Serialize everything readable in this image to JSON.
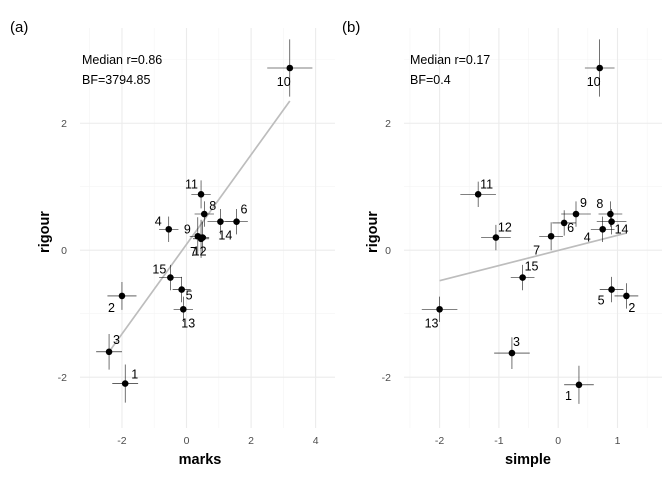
{
  "chart_data": [
    {
      "type": "scatter",
      "panel_tag": "(a)",
      "xlabel": "marks",
      "ylabel": "rigour",
      "xlim": [
        -3.3,
        4.6
      ],
      "ylim": [
        -2.8,
        3.5
      ],
      "x_ticks": [
        -2,
        0,
        2,
        4
      ],
      "y_ticks": [
        -2,
        0,
        2
      ],
      "grid": true,
      "annotations": [
        "Median r=0.86",
        "BF=3794.85"
      ],
      "fit_line": {
        "x": [
          -2.4,
          3.2
        ],
        "y": [
          -1.6,
          2.35
        ]
      },
      "points": [
        {
          "label": "1",
          "x": -1.9,
          "y": -2.1,
          "xerr": 0.4,
          "yerr": 0.3
        },
        {
          "label": "2",
          "x": -2.0,
          "y": -0.72,
          "xerr": 0.45,
          "yerr": 0.22
        },
        {
          "label": "3",
          "x": -2.4,
          "y": -1.6,
          "xerr": 0.4,
          "yerr": 0.28
        },
        {
          "label": "4",
          "x": -0.55,
          "y": 0.33,
          "xerr": 0.3,
          "yerr": 0.2
        },
        {
          "label": "5",
          "x": -0.15,
          "y": -0.62,
          "xerr": 0.28,
          "yerr": 0.2
        },
        {
          "label": "6",
          "x": 1.55,
          "y": 0.45,
          "xerr": 0.35,
          "yerr": 0.2
        },
        {
          "label": "7",
          "x": 0.45,
          "y": 0.18,
          "xerr": 0.25,
          "yerr": 0.3
        },
        {
          "label": "8",
          "x": 0.55,
          "y": 0.57,
          "xerr": 0.3,
          "yerr": 0.2
        },
        {
          "label": "9",
          "x": 0.35,
          "y": 0.22,
          "xerr": 0.25,
          "yerr": 0.3
        },
        {
          "label": "10",
          "x": 3.2,
          "y": 2.87,
          "xerr": 0.7,
          "yerr": 0.45
        },
        {
          "label": "11",
          "x": 0.45,
          "y": 0.88,
          "xerr": 0.3,
          "yerr": 0.22
        },
        {
          "label": "12",
          "x": 0.5,
          "y": 0.2,
          "xerr": 0.2,
          "yerr": 0.25
        },
        {
          "label": "13",
          "x": -0.1,
          "y": -0.93,
          "xerr": 0.3,
          "yerr": 0.2
        },
        {
          "label": "14",
          "x": 1.05,
          "y": 0.45,
          "xerr": 0.4,
          "yerr": 0.2
        },
        {
          "label": "15",
          "x": -0.5,
          "y": -0.43,
          "xerr": 0.35,
          "yerr": 0.2
        }
      ]
    },
    {
      "type": "scatter",
      "panel_tag": "(b)",
      "xlabel": "simple",
      "ylabel": "rigour",
      "xlim": [
        -2.6,
        1.75
      ],
      "ylim": [
        -2.8,
        3.5
      ],
      "x_ticks": [
        -2,
        -1,
        0,
        1
      ],
      "y_ticks": [
        -2,
        0,
        2
      ],
      "grid": true,
      "annotations": [
        "Median r=0.17",
        "BF=0.4"
      ],
      "fit_line": {
        "x": [
          -2.0,
          1.15
        ],
        "y": [
          -0.48,
          0.27
        ]
      },
      "points": [
        {
          "label": "1",
          "x": 0.35,
          "y": -2.12,
          "xerr": 0.25,
          "yerr": 0.3
        },
        {
          "label": "2",
          "x": 1.15,
          "y": -0.72,
          "xerr": 0.2,
          "yerr": 0.2
        },
        {
          "label": "3",
          "x": -0.78,
          "y": -1.62,
          "xerr": 0.3,
          "yerr": 0.25
        },
        {
          "label": "4",
          "x": 0.75,
          "y": 0.33,
          "xerr": 0.2,
          "yerr": 0.2
        },
        {
          "label": "5",
          "x": 0.9,
          "y": -0.62,
          "xerr": 0.2,
          "yerr": 0.2
        },
        {
          "label": "6",
          "x": 0.1,
          "y": 0.43,
          "xerr": 0.2,
          "yerr": 0.2
        },
        {
          "label": "7",
          "x": -0.12,
          "y": 0.22,
          "xerr": 0.2,
          "yerr": 0.22
        },
        {
          "label": "8",
          "x": 0.88,
          "y": 0.57,
          "xerr": 0.2,
          "yerr": 0.2
        },
        {
          "label": "9",
          "x": 0.3,
          "y": 0.57,
          "xerr": 0.25,
          "yerr": 0.2
        },
        {
          "label": "10",
          "x": 0.7,
          "y": 2.87,
          "xerr": 0.25,
          "yerr": 0.45
        },
        {
          "label": "11",
          "x": -1.35,
          "y": 0.88,
          "xerr": 0.3,
          "yerr": 0.2
        },
        {
          "label": "12",
          "x": -1.05,
          "y": 0.2,
          "xerr": 0.25,
          "yerr": 0.2
        },
        {
          "label": "13",
          "x": -2.0,
          "y": -0.93,
          "xerr": 0.3,
          "yerr": 0.2
        },
        {
          "label": "14",
          "x": 0.9,
          "y": 0.45,
          "xerr": 0.25,
          "yerr": 0.2
        },
        {
          "label": "15",
          "x": -0.6,
          "y": -0.43,
          "xerr": 0.2,
          "yerr": 0.2
        }
      ]
    }
  ]
}
